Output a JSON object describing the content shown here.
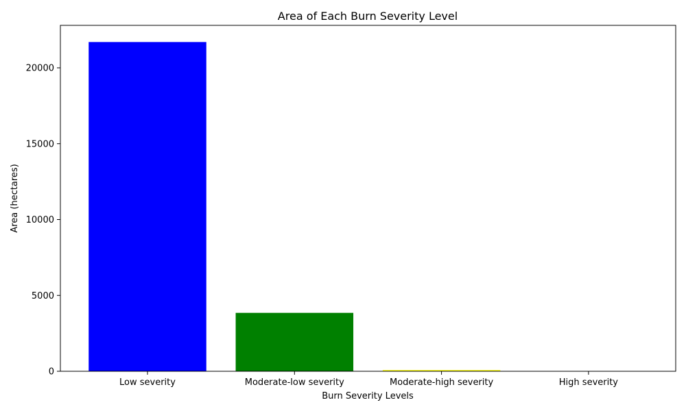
{
  "chart_data": {
    "type": "bar",
    "title": "Area of Each Burn Severity Level",
    "xlabel": "Burn Severity Levels",
    "ylabel": "Area (hectares)",
    "categories": [
      "Low severity",
      "Moderate-low severity",
      "Moderate-high severity",
      "High severity"
    ],
    "values": [
      21700,
      3850,
      80,
      5
    ],
    "colors": [
      "#0000ff",
      "#008000",
      "#ffff00",
      "#ff0000"
    ],
    "ylim": [
      0,
      22800
    ],
    "yticks": [
      0,
      5000,
      10000,
      15000,
      20000
    ],
    "grid": false,
    "legend": "none"
  }
}
